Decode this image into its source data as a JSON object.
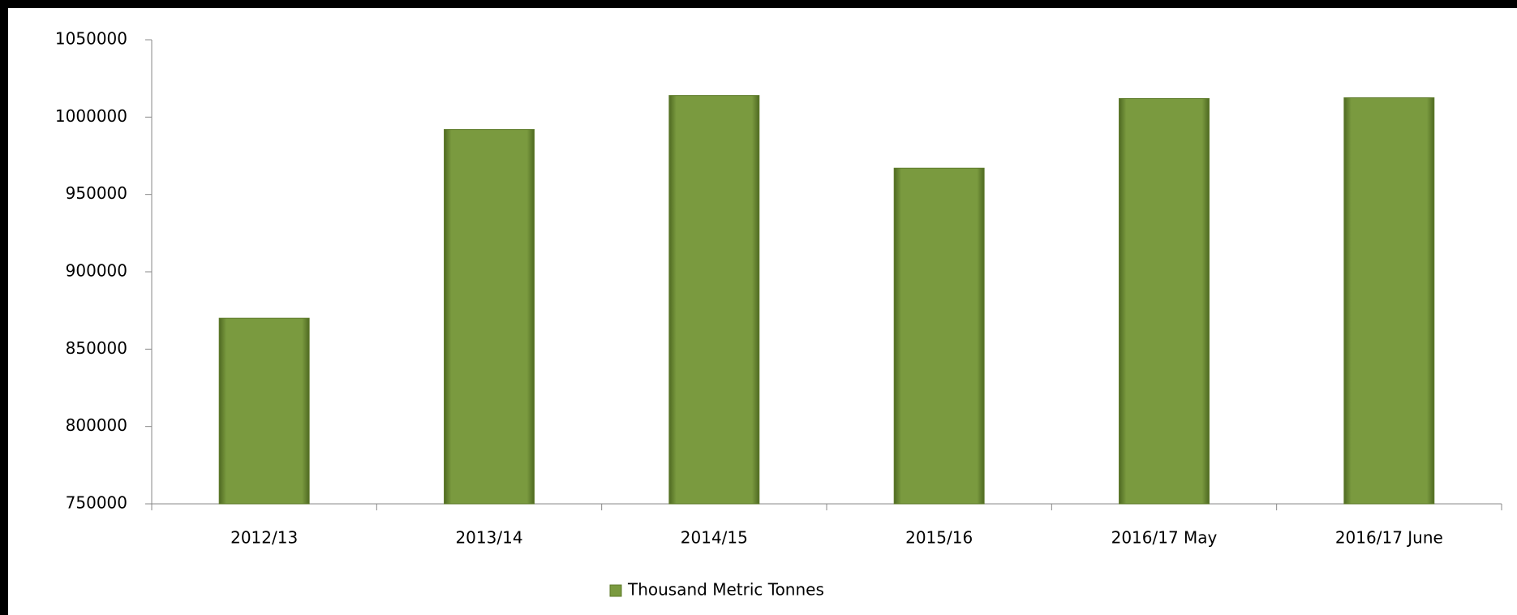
{
  "chart_data": {
    "type": "bar",
    "categories": [
      "2012/13",
      "2013/14",
      "2014/15",
      "2015/16",
      "2016/17 May",
      "2016/17 June"
    ],
    "series": [
      {
        "name": "Thousand Metric Tonnes",
        "color": "#7a9a3f",
        "values": [
          870000,
          992000,
          1014000,
          967000,
          1012000,
          1012500
        ]
      }
    ],
    "ylim": [
      750000,
      1050000
    ],
    "yticks": [
      750000,
      800000,
      850000,
      900000,
      950000,
      1000000,
      1050000
    ],
    "grid": false,
    "legend": "bottom"
  }
}
